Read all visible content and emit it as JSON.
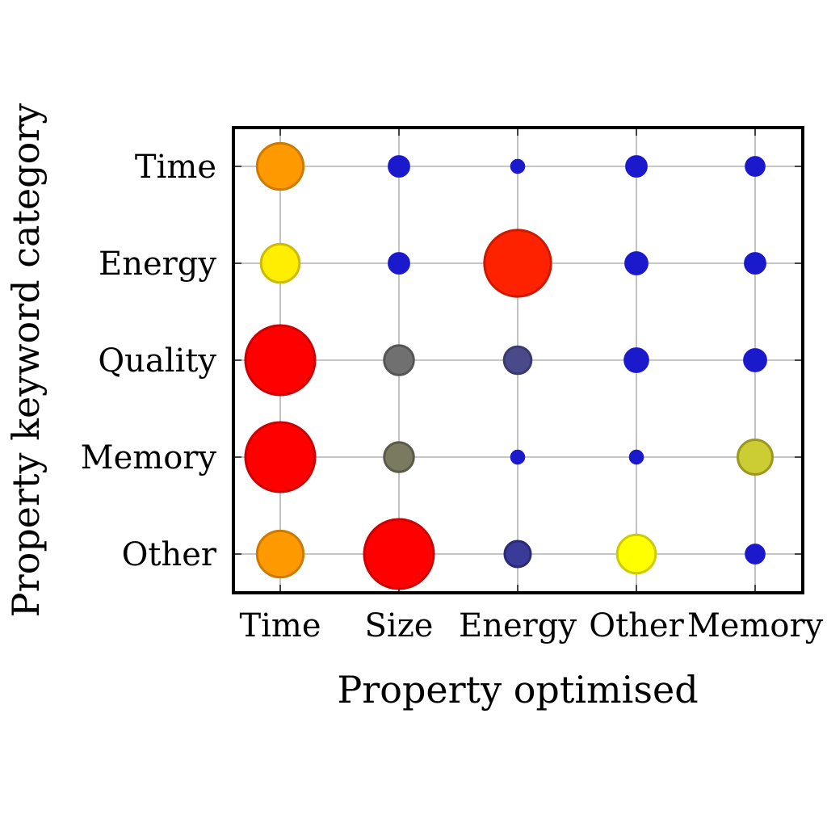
{
  "chart_data": {
    "type": "scatter",
    "title": "",
    "xlabel": "Property optimised",
    "ylabel": "Property keyword category",
    "x_categories": [
      "Time",
      "Size",
      "Energy",
      "Other",
      "Memory"
    ],
    "y_categories": [
      "Time",
      "Energy",
      "Quality",
      "Memory",
      "Other"
    ],
    "grid": true,
    "legend": "none",
    "points": [
      {
        "x": "Time",
        "y": "Time",
        "size": 0.32,
        "color": "#ff9900",
        "stroke": "#cc7a00"
      },
      {
        "x": "Size",
        "y": "Time",
        "size": 0.06,
        "color": "#1a1acc",
        "stroke": "#1a1acc"
      },
      {
        "x": "Energy",
        "y": "Time",
        "size": 0.03,
        "color": "#1a1acc",
        "stroke": "#1a1acc"
      },
      {
        "x": "Other",
        "y": "Time",
        "size": 0.06,
        "color": "#1a1acc",
        "stroke": "#1a1acc"
      },
      {
        "x": "Memory",
        "y": "Time",
        "size": 0.05,
        "color": "#1a1acc",
        "stroke": "#1a1acc"
      },
      {
        "x": "Time",
        "y": "Energy",
        "size": 0.22,
        "color": "#ffee00",
        "stroke": "#ccbb00"
      },
      {
        "x": "Size",
        "y": "Energy",
        "size": 0.06,
        "color": "#1a1acc",
        "stroke": "#1a1acc"
      },
      {
        "x": "Energy",
        "y": "Energy",
        "size": 0.66,
        "color": "#ff2200",
        "stroke": "#cc1a00"
      },
      {
        "x": "Other",
        "y": "Energy",
        "size": 0.07,
        "color": "#1a1acc",
        "stroke": "#1a1acc"
      },
      {
        "x": "Memory",
        "y": "Energy",
        "size": 0.06,
        "color": "#1a1acc",
        "stroke": "#1a1acc"
      },
      {
        "x": "Time",
        "y": "Quality",
        "size": 0.72,
        "color": "#ff0000",
        "stroke": "#cc0000"
      },
      {
        "x": "Size",
        "y": "Quality",
        "size": 0.13,
        "color": "#707070",
        "stroke": "#555555"
      },
      {
        "x": "Energy",
        "y": "Quality",
        "size": 0.11,
        "color": "#4a4a88",
        "stroke": "#3a3a70"
      },
      {
        "x": "Other",
        "y": "Quality",
        "size": 0.08,
        "color": "#1a1acc",
        "stroke": "#1a1acc"
      },
      {
        "x": "Memory",
        "y": "Quality",
        "size": 0.07,
        "color": "#1a1acc",
        "stroke": "#1a1acc"
      },
      {
        "x": "Time",
        "y": "Memory",
        "size": 0.72,
        "color": "#ff0000",
        "stroke": "#cc0000"
      },
      {
        "x": "Size",
        "y": "Memory",
        "size": 0.13,
        "color": "#7a7a60",
        "stroke": "#5a5a48"
      },
      {
        "x": "Energy",
        "y": "Memory",
        "size": 0.03,
        "color": "#1a1acc",
        "stroke": "#1a1acc"
      },
      {
        "x": "Other",
        "y": "Memory",
        "size": 0.03,
        "color": "#1a1acc",
        "stroke": "#1a1acc"
      },
      {
        "x": "Memory",
        "y": "Memory",
        "size": 0.18,
        "color": "#cccc33",
        "stroke": "#999922"
      },
      {
        "x": "Time",
        "y": "Other",
        "size": 0.32,
        "color": "#ff9900",
        "stroke": "#cc7a00"
      },
      {
        "x": "Size",
        "y": "Other",
        "size": 0.72,
        "color": "#ff0000",
        "stroke": "#cc0000"
      },
      {
        "x": "Energy",
        "y": "Other",
        "size": 0.1,
        "color": "#3a3a99",
        "stroke": "#2a2a77"
      },
      {
        "x": "Other",
        "y": "Other",
        "size": 0.22,
        "color": "#ffff00",
        "stroke": "#cccc00"
      },
      {
        "x": "Memory",
        "y": "Other",
        "size": 0.05,
        "color": "#1a1acc",
        "stroke": "#1a1acc"
      }
    ]
  }
}
